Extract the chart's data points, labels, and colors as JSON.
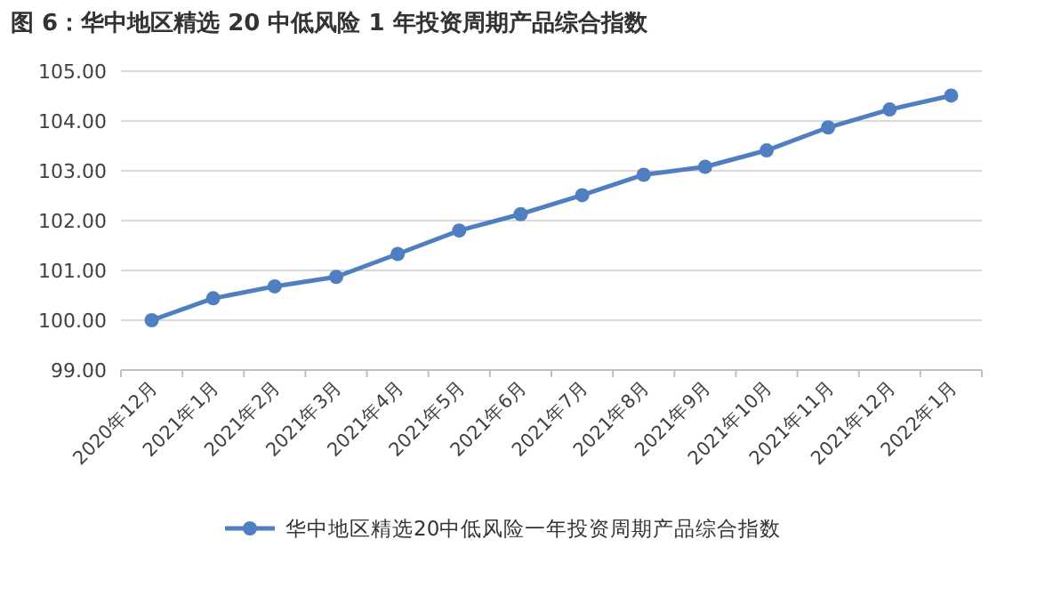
{
  "chart_data": {
    "type": "line",
    "title": "图 6：华中地区精选 20 中低风险 1 年投资周期产品综合指数",
    "categories": [
      "2020年12月",
      "2021年1月",
      "2021年2月",
      "2021年3月",
      "2021年4月",
      "2021年5月",
      "2021年6月",
      "2021年7月",
      "2021年8月",
      "2021年9月",
      "2021年10月",
      "2021年11月",
      "2021年12月",
      "2022年1月"
    ],
    "series": [
      {
        "name": "华中地区精选20中低风险一年投资周期产品综合指数",
        "color": "#4f7fc0",
        "values": [
          100.0,
          100.44,
          100.68,
          100.87,
          101.33,
          101.8,
          102.13,
          102.51,
          102.92,
          103.08,
          103.41,
          103.87,
          104.23,
          104.51
        ]
      }
    ],
    "ylim": [
      99,
      105
    ],
    "yticks": [
      {
        "value": 99,
        "label": "99.00"
      },
      {
        "value": 100,
        "label": "100.00"
      },
      {
        "value": 101,
        "label": "101.00"
      },
      {
        "value": 102,
        "label": "102.00"
      },
      {
        "value": 103,
        "label": "103.00"
      },
      {
        "value": 104,
        "label": "104.00"
      },
      {
        "value": 105,
        "label": "105.00"
      }
    ],
    "grid": "y",
    "legend": "bottom",
    "marker": "circle",
    "line_style": "solid"
  }
}
